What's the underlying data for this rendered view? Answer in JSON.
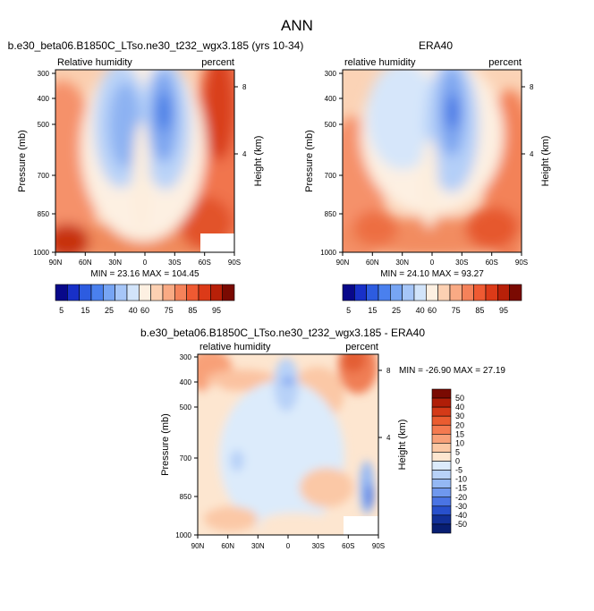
{
  "page_title": "ANN",
  "chart_data": [
    {
      "type": "heatmap",
      "panel": "model",
      "title": "b.e30_beta06.B1850C_LTso.ne30_t232_wgx3.185 (yrs 10-34)",
      "left_label": "Relative humidity",
      "right_label": "percent",
      "ylabel": "Pressure (mb)",
      "right_ylabel": "Height (km)",
      "xticks": [
        "90N",
        "60N",
        "30N",
        "0",
        "30S",
        "60S",
        "90S"
      ],
      "yticks": [
        300,
        400,
        500,
        700,
        850,
        1000
      ],
      "ylim": [
        1000,
        300
      ],
      "height_ticks": [
        8,
        4
      ],
      "stats": "MIN = 23.16  MAX = 104.45",
      "min": 23.16,
      "max": 104.45,
      "missing_region": "60S-90S below ~900 mb"
    },
    {
      "type": "heatmap",
      "panel": "obs",
      "title": "ERA40",
      "left_label": "relative humidity",
      "right_label": "percent",
      "ylabel": "Pressure (mb)",
      "right_ylabel": "Height (km)",
      "xticks": [
        "90N",
        "60N",
        "30N",
        "0",
        "30S",
        "60S",
        "90S"
      ],
      "yticks": [
        300,
        400,
        500,
        700,
        850,
        1000
      ],
      "ylim": [
        1000,
        300
      ],
      "height_ticks": [
        8,
        4
      ],
      "stats": "MIN = 24.10  MAX = 93.27",
      "min": 24.1,
      "max": 93.27
    },
    {
      "type": "heatmap",
      "panel": "difference",
      "title": "b.e30_beta06.B1850C_LTso.ne30_t232_wgx3.185 - ERA40",
      "left_label": "relative humidity",
      "right_label": "percent",
      "ylabel": "Pressure (mb)",
      "right_ylabel": "Height (km)",
      "xticks": [
        "90N",
        "60N",
        "30N",
        "0",
        "30S",
        "60S",
        "90S"
      ],
      "yticks": [
        300,
        400,
        500,
        700,
        850,
        1000
      ],
      "ylim": [
        1000,
        300
      ],
      "height_ticks": [
        8,
        4
      ],
      "stats": "MIN = -26.90  MAX = 27.19",
      "min": -26.9,
      "max": 27.19
    }
  ],
  "colorbar_abs": {
    "labels": [
      "5",
      "15",
      "25",
      "40",
      "60",
      "75",
      "85",
      "95"
    ],
    "colors": [
      "#08088a",
      "#1830c8",
      "#2d5ce0",
      "#4a80ee",
      "#77a5f4",
      "#a6c6f8",
      "#d2e4fa",
      "#fdf0e2",
      "#fcd0b2",
      "#f9aa84",
      "#f5825a",
      "#ef5a32",
      "#dc3a18",
      "#b82008",
      "#7a0a02"
    ]
  },
  "colorbar_diff": {
    "labels": [
      "50",
      "40",
      "30",
      "20",
      "15",
      "10",
      "5",
      "0",
      "-5",
      "-10",
      "-15",
      "-20",
      "-30",
      "-40",
      "-50"
    ],
    "colors": [
      "#7a0a02",
      "#b01e08",
      "#d43a18",
      "#ea5c30",
      "#f47a50",
      "#f8a078",
      "#fcc8a4",
      "#fde6d0",
      "#dcebfb",
      "#b8d2f8",
      "#94b8f4",
      "#6f98ee",
      "#4a74e4",
      "#2850cc",
      "#123098",
      "#081e72"
    ]
  }
}
